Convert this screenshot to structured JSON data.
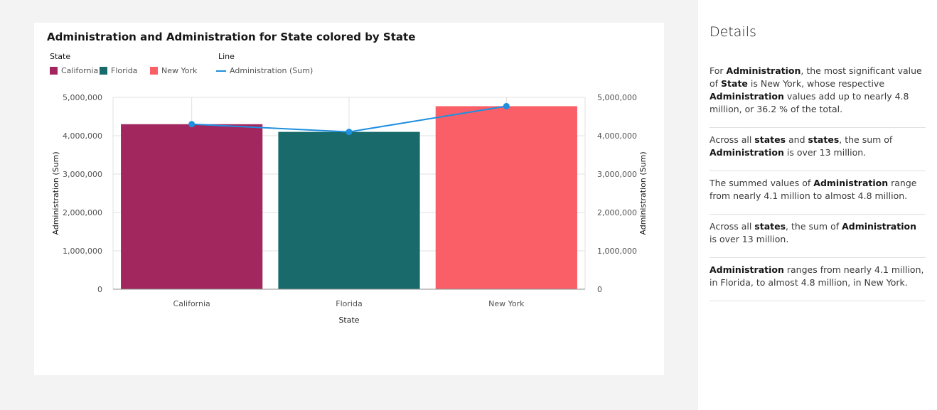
{
  "chart_data": {
    "type": "bar",
    "title": "Administration and Administration for State colored by State",
    "categories": [
      "California",
      "Florida",
      "New York"
    ],
    "series": [
      {
        "name": "Administration (Sum)",
        "kind": "bar",
        "values": [
          4300000,
          4100000,
          4770000
        ]
      },
      {
        "name": "Administration (Sum)",
        "kind": "line",
        "values": [
          4300000,
          4100000,
          4770000
        ]
      }
    ],
    "bar_colors": [
      "#a2275f",
      "#196b6b",
      "#fa5f68"
    ],
    "line_color": "#1f8fe0",
    "xlabel": "State",
    "ylabel": "Administration (Sum)",
    "y2label": "Administration (Sum)",
    "ylim": [
      0,
      5000000
    ],
    "yticks": [
      0,
      1000000,
      2000000,
      3000000,
      4000000,
      5000000
    ],
    "ytick_labels": [
      "0",
      "1,000,000",
      "2,000,000",
      "3,000,000",
      "4,000,000",
      "5,000,000"
    ],
    "grid": true,
    "legend": {
      "placement": "top-left",
      "groups": [
        {
          "heading": "State",
          "items": [
            "California",
            "Florida",
            "New York"
          ]
        },
        {
          "heading": "Line",
          "items": [
            "Administration (Sum)"
          ]
        }
      ]
    }
  },
  "details": {
    "title": "Details",
    "insights": [
      [
        {
          "t": "For "
        },
        {
          "t": "Administration",
          "b": true
        },
        {
          "t": ", the most significant value of "
        },
        {
          "t": "State",
          "b": true
        },
        {
          "t": " is New York, whose respective "
        },
        {
          "t": "Administration",
          "b": true
        },
        {
          "t": " values add up to nearly 4.8 million, or 36.2 % of the total."
        }
      ],
      [
        {
          "t": "Across all "
        },
        {
          "t": "states",
          "b": true
        },
        {
          "t": " and "
        },
        {
          "t": "states",
          "b": true
        },
        {
          "t": ", the sum of "
        },
        {
          "t": "Administration",
          "b": true
        },
        {
          "t": " is over 13 million."
        }
      ],
      [
        {
          "t": "The summed values of "
        },
        {
          "t": "Administration",
          "b": true
        },
        {
          "t": " range from nearly 4.1 million to almost 4.8 million."
        }
      ],
      [
        {
          "t": "Across all "
        },
        {
          "t": "states",
          "b": true
        },
        {
          "t": ", the sum of "
        },
        {
          "t": "Administration",
          "b": true
        },
        {
          "t": " is over 13 million."
        }
      ],
      [
        {
          "t": "Administration",
          "b": true
        },
        {
          "t": " ranges from nearly 4.1 million, in Florida, to almost 4.8 million, in New York."
        }
      ]
    ]
  }
}
